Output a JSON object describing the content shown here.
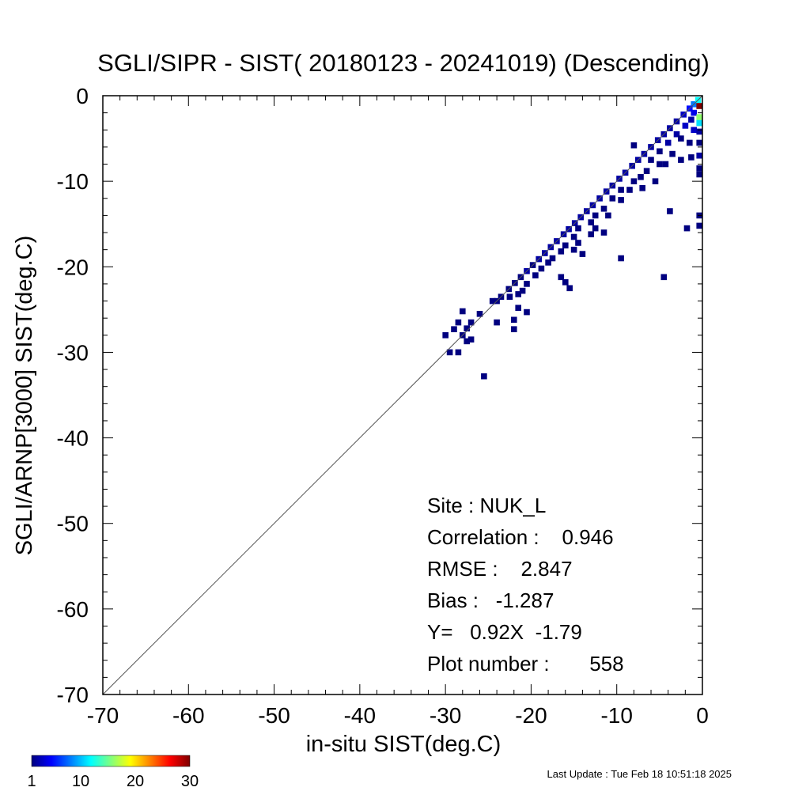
{
  "chart_data": {
    "type": "heatmap",
    "title": "SGLI/SIPR - SIST( 20180123 - 20241019) (Descending)",
    "xlabel": "in-situ SIST(deg.C)",
    "ylabel": "SGLI/ARNP[3000]    SIST(deg.C)",
    "xlim": [
      -70,
      0
    ],
    "ylim": [
      -70,
      0
    ],
    "x_ticks": [
      -70,
      -60,
      -50,
      -40,
      -30,
      -20,
      -10,
      0
    ],
    "y_ticks": [
      0,
      -10,
      -20,
      -30,
      -40,
      -50,
      -60,
      -70
    ],
    "x_tick_labels": [
      "-70",
      "-60",
      "-50",
      "-40",
      "-30",
      "-20",
      "-10",
      "0"
    ],
    "y_tick_labels": [
      "0",
      "-10",
      "-20",
      "-30",
      "-40",
      "-50",
      "-60",
      "-70"
    ],
    "bin_size": 0.7,
    "one_to_one_line": true,
    "grid": false,
    "colorbar": {
      "min": 1,
      "max": 30,
      "ticks": [
        1,
        10,
        20,
        30
      ],
      "tick_labels": [
        "1",
        "10",
        "20",
        "30"
      ],
      "colormap": "jet"
    },
    "stats": {
      "site": "Site : NUK_L",
      "correlation": "Correlation :    0.946",
      "rmse": "RMSE :    2.847",
      "bias": "Bias :   -1.287",
      "regression": "Y=   0.92X  -1.79",
      "plot_number": "Plot number :       558"
    },
    "bins": [
      [
        -1.0,
        -1.0,
        8
      ],
      [
        -0.5,
        -0.5,
        12
      ],
      [
        -0.3,
        -1.2,
        30
      ],
      [
        -1.5,
        -1.5,
        5
      ],
      [
        -1.0,
        -2.0,
        4
      ],
      [
        -0.3,
        -2.5,
        16
      ],
      [
        -0.3,
        -3.2,
        11
      ],
      [
        -2.2,
        -2.2,
        3
      ],
      [
        -1.3,
        -2.8,
        2
      ],
      [
        -3.0,
        -3.0,
        2
      ],
      [
        -2.0,
        -3.5,
        3
      ],
      [
        -3.8,
        -3.8,
        2
      ],
      [
        -3.0,
        -4.5,
        2
      ],
      [
        -1.0,
        -4.0,
        3
      ],
      [
        -0.3,
        -4.2,
        2
      ],
      [
        -4.5,
        -4.5,
        2
      ],
      [
        -5.2,
        -5.2,
        2
      ],
      [
        -4.0,
        -5.5,
        2
      ],
      [
        -2.5,
        -5.0,
        1
      ],
      [
        -1.5,
        -5.5,
        1
      ],
      [
        -0.3,
        -5.5,
        1
      ],
      [
        -6.0,
        -6.0,
        2
      ],
      [
        -5.0,
        -6.5,
        1
      ],
      [
        -3.5,
        -6.8,
        1
      ],
      [
        -0.3,
        -7.0,
        2
      ],
      [
        -8.0,
        -5.8,
        1
      ],
      [
        -6.8,
        -6.8,
        2
      ],
      [
        -6.0,
        -7.5,
        1
      ],
      [
        -7.5,
        -7.5,
        2
      ],
      [
        -5.0,
        -8.0,
        1
      ],
      [
        -2.5,
        -7.5,
        1
      ],
      [
        -1.3,
        -7.2,
        1
      ],
      [
        -8.2,
        -8.2,
        2
      ],
      [
        -6.5,
        -8.8,
        1
      ],
      [
        -4.3,
        -8.0,
        1
      ],
      [
        -0.3,
        -8.5,
        1
      ],
      [
        -9.0,
        -9.0,
        2
      ],
      [
        -8.0,
        -10.0,
        1
      ],
      [
        -7.2,
        -9.5,
        1
      ],
      [
        -5.5,
        -10.0,
        1
      ],
      [
        -0.3,
        -9.2,
        1
      ],
      [
        -9.7,
        -9.7,
        2
      ],
      [
        -10.5,
        -10.5,
        2
      ],
      [
        -9.5,
        -11.0,
        1
      ],
      [
        -8.5,
        -11.0,
        1
      ],
      [
        -7.0,
        -10.8,
        1
      ],
      [
        -11.2,
        -11.2,
        2
      ],
      [
        -10.5,
        -12.0,
        1
      ],
      [
        -9.5,
        -12.2,
        1
      ],
      [
        -12.0,
        -12.0,
        2
      ],
      [
        -12.8,
        -12.8,
        2
      ],
      [
        -11.5,
        -13.2,
        1
      ],
      [
        -13.5,
        -13.5,
        2
      ],
      [
        -12.5,
        -14.0,
        1
      ],
      [
        -11.0,
        -14.0,
        1
      ],
      [
        -3.8,
        -13.5,
        1
      ],
      [
        -14.2,
        -14.2,
        2
      ],
      [
        -13.0,
        -14.8,
        1
      ],
      [
        -14.9,
        -14.9,
        2
      ],
      [
        -15.6,
        -15.6,
        2
      ],
      [
        -14.5,
        -15.5,
        1
      ],
      [
        -12.5,
        -15.5,
        1
      ],
      [
        -0.3,
        -14.0,
        1
      ],
      [
        -0.3,
        -15.2,
        1
      ],
      [
        -16.2,
        -16.2,
        2
      ],
      [
        -15.0,
        -16.5,
        1
      ],
      [
        -13.0,
        -16.2,
        1
      ],
      [
        -11.5,
        -16.0,
        1
      ],
      [
        -1.8,
        -15.5,
        1
      ],
      [
        -17.0,
        -17.0,
        2
      ],
      [
        -16.0,
        -17.5,
        1
      ],
      [
        -14.5,
        -17.2,
        1
      ],
      [
        -17.7,
        -17.7,
        2
      ],
      [
        -16.5,
        -18.2,
        1
      ],
      [
        -15.0,
        -18.0,
        1
      ],
      [
        -18.4,
        -18.4,
        2
      ],
      [
        -17.5,
        -19.0,
        1
      ],
      [
        -14.0,
        -18.5,
        1
      ],
      [
        -19.1,
        -19.1,
        2
      ],
      [
        -18.0,
        -19.5,
        1
      ],
      [
        -9.5,
        -19.0,
        1
      ],
      [
        -19.8,
        -19.8,
        1
      ],
      [
        -18.8,
        -20.2,
        1
      ],
      [
        -20.5,
        -20.5,
        2
      ],
      [
        -19.5,
        -21.0,
        1
      ],
      [
        -21.2,
        -21.2,
        1
      ],
      [
        -20.5,
        -22.0,
        1
      ],
      [
        -16.5,
        -21.2,
        1
      ],
      [
        -4.5,
        -21.2,
        1
      ],
      [
        -21.9,
        -21.9,
        1
      ],
      [
        -21.0,
        -22.8,
        1
      ],
      [
        -16.0,
        -21.8,
        1
      ],
      [
        -22.6,
        -22.6,
        1
      ],
      [
        -21.5,
        -23.2,
        1
      ],
      [
        -15.5,
        -22.5,
        1
      ],
      [
        -23.5,
        -23.5,
        1
      ],
      [
        -22.5,
        -23.5,
        1
      ],
      [
        -24.0,
        -24.0,
        1
      ],
      [
        -21.5,
        -24.8,
        1
      ],
      [
        -24.5,
        -24.0,
        1
      ],
      [
        -20.5,
        -25.3,
        1
      ],
      [
        -26.0,
        -25.5,
        1
      ],
      [
        -28.0,
        -25.2,
        1
      ],
      [
        -22.0,
        -26.2,
        1
      ],
      [
        -24.0,
        -26.5,
        1
      ],
      [
        -27.0,
        -26.5,
        1
      ],
      [
        -28.5,
        -26.5,
        1
      ],
      [
        -29.0,
        -27.3,
        1
      ],
      [
        -27.5,
        -27.2,
        1
      ],
      [
        -22.0,
        -27.3,
        1
      ],
      [
        -30.0,
        -28.0,
        1
      ],
      [
        -28.0,
        -28.0,
        1
      ],
      [
        -27.5,
        -28.7,
        1
      ],
      [
        -27.0,
        -28.5,
        1
      ],
      [
        -29.5,
        -30.0,
        1
      ],
      [
        -28.5,
        -30.0,
        1
      ],
      [
        -25.5,
        -32.8,
        1
      ]
    ]
  },
  "footer": {
    "last_update": "Last Update : Tue Feb 18 10:51:18 2025"
  }
}
